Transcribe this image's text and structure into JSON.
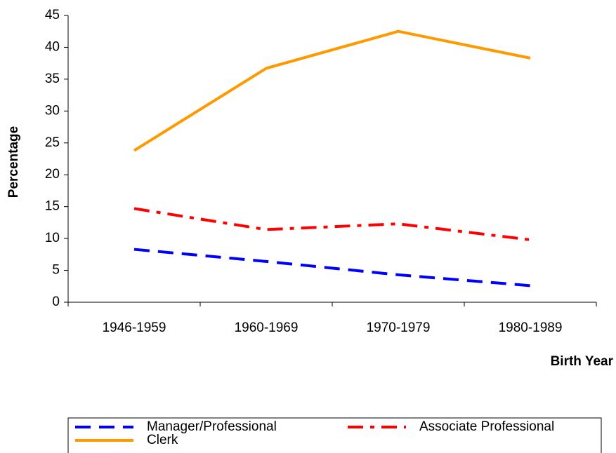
{
  "chart_data": {
    "type": "line",
    "x_label": "Birth Year",
    "y_label": "Percentage",
    "categories": [
      "1946-1959",
      "1960-1969",
      "1970-1979",
      "1980-1989"
    ],
    "series": [
      {
        "name": "Manager/Professional",
        "color": "#0000ff",
        "dash": "dashed",
        "values": [
          8.3,
          6.4,
          4.3,
          2.6
        ]
      },
      {
        "name": "Associate Professional",
        "color": "#ff0000",
        "dash": "dashdot",
        "values": [
          14.7,
          11.4,
          12.3,
          9.8
        ]
      },
      {
        "name": "Clerk",
        "color": "#ff9900",
        "dash": "solid",
        "values": [
          23.8,
          36.7,
          42.5,
          38.3
        ]
      }
    ],
    "ylim": [
      0,
      45
    ],
    "yticks": [
      0,
      5,
      10,
      15,
      20,
      25,
      30,
      35,
      40,
      45
    ],
    "grid": false,
    "legend": "bottom"
  }
}
